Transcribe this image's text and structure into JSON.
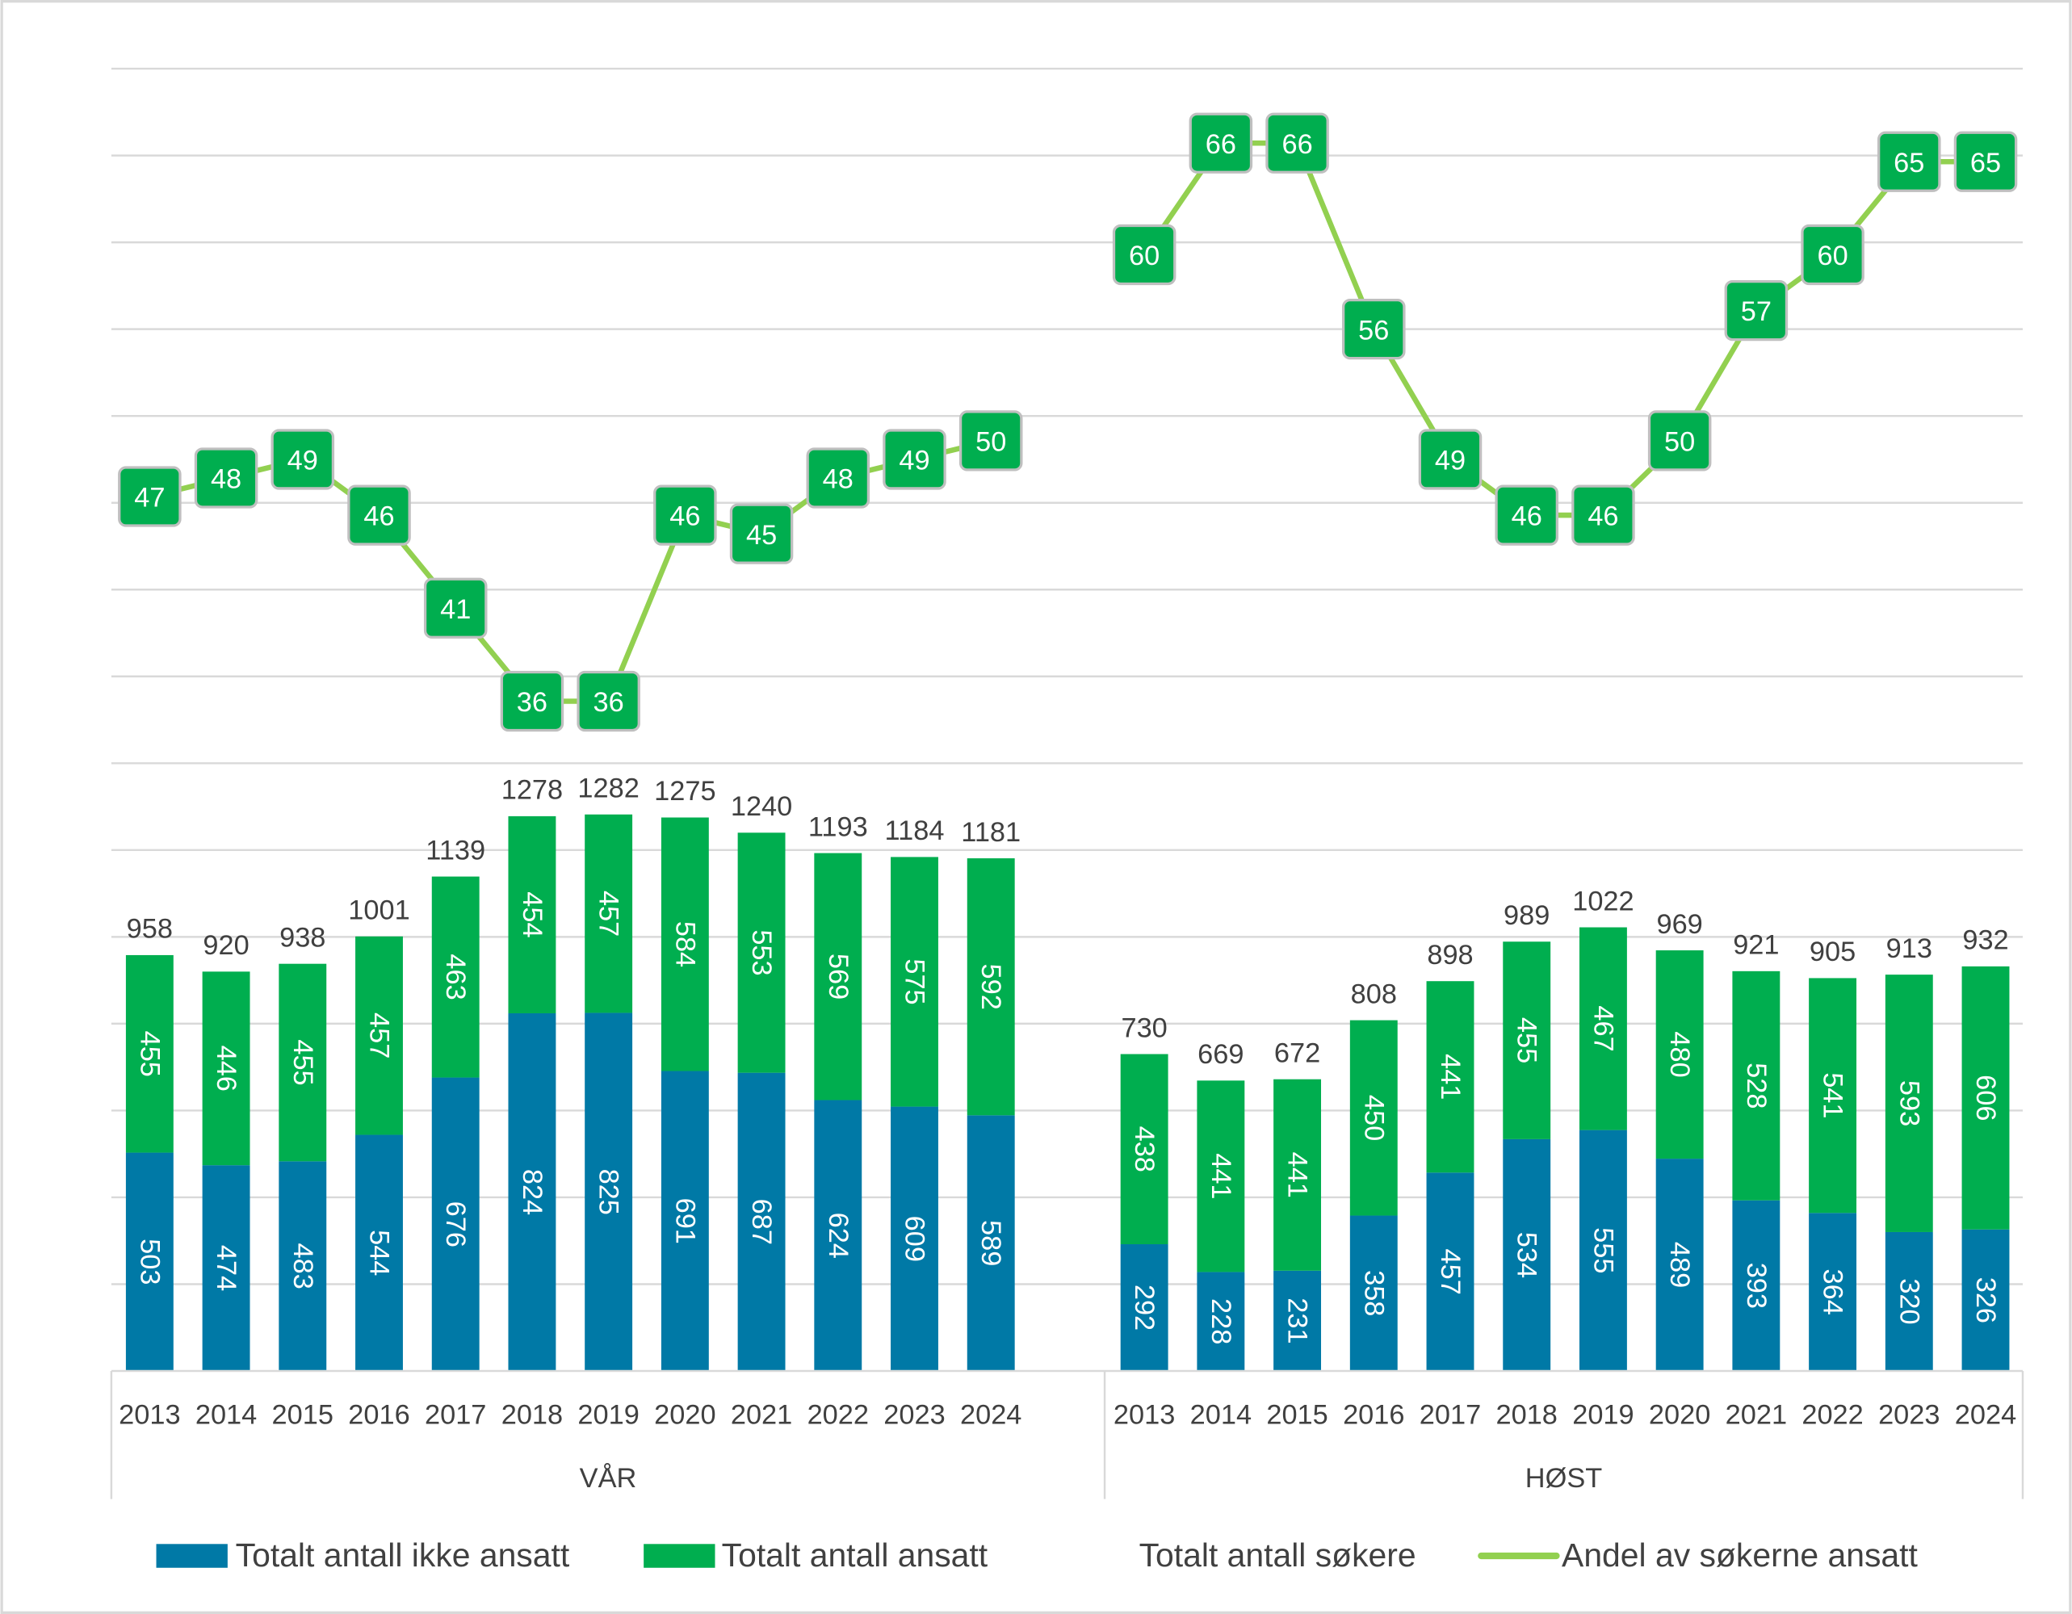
{
  "chart_data": {
    "type": "bar",
    "stacked": true,
    "groups": [
      "VÅR",
      "HØST"
    ],
    "categories": [
      "2013",
      "2014",
      "2015",
      "2016",
      "2017",
      "2018",
      "2019",
      "2020",
      "2021",
      "2022",
      "2023",
      "2024"
    ],
    "primary_axis": {
      "ylim": [
        0,
        3000
      ],
      "gridline_step": 200,
      "tick_labels_shown": false
    },
    "secondary_axis": {
      "ylim": [
        0,
        70
      ],
      "tick_labels_shown": false
    },
    "grid": true,
    "legend_position": "bottom",
    "series": [
      {
        "name": "Totalt antall ikke ansatt",
        "type": "bar",
        "color": "#0079A6",
        "values": {
          "VÅR": [
            503,
            474,
            483,
            544,
            676,
            824,
            825,
            691,
            687,
            624,
            609,
            589
          ],
          "HØST": [
            292,
            228,
            231,
            358,
            457,
            534,
            555,
            489,
            393,
            364,
            320,
            326
          ]
        }
      },
      {
        "name": "Totalt antall ansatt",
        "type": "bar",
        "color": "#00AE4F",
        "values": {
          "VÅR": [
            455,
            446,
            455,
            457,
            463,
            454,
            457,
            584,
            553,
            569,
            575,
            592
          ],
          "HØST": [
            438,
            441,
            441,
            450,
            441,
            455,
            467,
            480,
            528,
            541,
            593,
            606
          ]
        }
      },
      {
        "name": "Totalt antall søkere",
        "type": "total-label",
        "color": "#404040",
        "values": {
          "VÅR": [
            958,
            920,
            938,
            1001,
            1139,
            1278,
            1282,
            1275,
            1240,
            1193,
            1184,
            1181
          ],
          "HØST": [
            730,
            669,
            672,
            808,
            898,
            989,
            1022,
            969,
            921,
            905,
            913,
            932
          ]
        }
      },
      {
        "name": "Andel av søkerne ansatt",
        "type": "line",
        "axis": "secondary",
        "color": "#92D050",
        "label_fill": "#00AE4F",
        "values": {
          "VÅR": [
            47,
            48,
            49,
            46,
            41,
            36,
            36,
            46,
            45,
            48,
            49,
            50
          ],
          "HØST": [
            60,
            66,
            66,
            56,
            49,
            46,
            46,
            50,
            57,
            60,
            65,
            65
          ]
        }
      }
    ]
  }
}
